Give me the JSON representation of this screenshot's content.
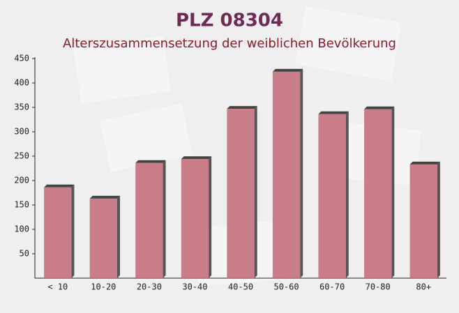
{
  "chart_data": {
    "type": "bar",
    "title": "PLZ 08304",
    "subtitle": "Alterszusammensetzung der weiblichen Bevölkerung",
    "categories": [
      "< 10",
      "10-20",
      "20-30",
      "30-40",
      "40-50",
      "50-60",
      "60-70",
      "70-80",
      "80+"
    ],
    "values": [
      186,
      163,
      236,
      244,
      347,
      423,
      336,
      346,
      233
    ],
    "color": "#c4707c",
    "ylim": [
      0,
      450
    ],
    "yticks": [
      50,
      100,
      150,
      200,
      250,
      300,
      350,
      400,
      450
    ]
  }
}
